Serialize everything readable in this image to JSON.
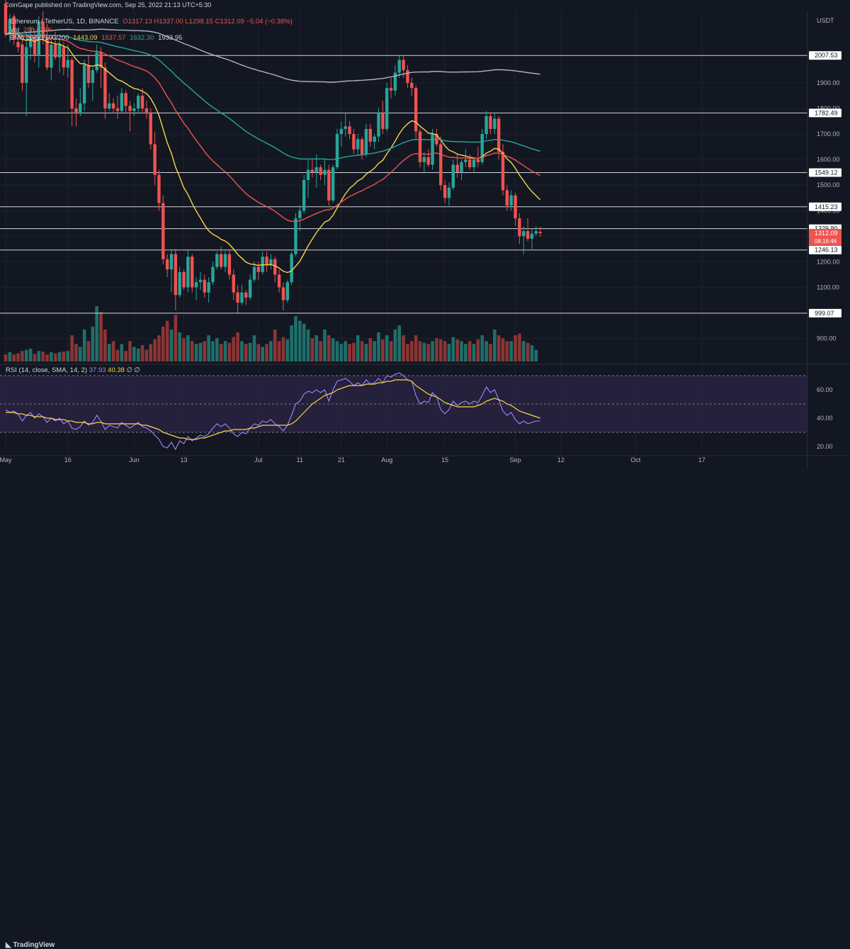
{
  "publisher": "CoinGape published on TradingView.com, Sep 25, 2022 21:13 UTC+5:30",
  "legend": {
    "symbol": "Ethereum / TetherUS, 1D, BINANCE",
    "ohlc": "O1317.13 H1337.00 L1298.15 C1312.09 −5.04 (−0.38%)",
    "vol_label": "Vol",
    "vol_value": "288.618K",
    "ema_label": "EMA 20/50/100/200",
    "ema20": "1443.09",
    "ema50": "1537.57",
    "ema100": "1632.30",
    "ema200": "1933.95"
  },
  "rsi_legend": {
    "label": "RSI (14, close, SMA, 14, 2)",
    "rsi": "37.93",
    "sma": "40.38",
    "tail": "∅ ∅"
  },
  "currency": "USDT",
  "brand": "TradingView",
  "colors": {
    "background": "#131722",
    "up": "#26a69a",
    "down": "#ef5350",
    "ema20": "#f7d54a",
    "ema50": "#ef5350",
    "ema100": "#26a69a",
    "ema200": "#b2b5be",
    "rsi": "#9c88ff",
    "rsi_sma": "#f7d54a"
  },
  "chart_data": {
    "type": "candlestick",
    "title": "Ethereum / TetherUS, 1D, BINANCE",
    "ylabel": "USDT",
    "ylim": [
      810,
      2180
    ],
    "price_ticks": [
      900,
      1000,
      1100,
      1200,
      1300,
      1400,
      1500,
      1600,
      1700,
      1800,
      1900
    ],
    "x_labels": [
      {
        "day": 0,
        "label": "May"
      },
      {
        "day": 15,
        "label": "16"
      },
      {
        "day": 31,
        "label": "Jun"
      },
      {
        "day": 43,
        "label": "13"
      },
      {
        "day": 61,
        "label": "Jul"
      },
      {
        "day": 71,
        "label": "11"
      },
      {
        "day": 81,
        "label": "21"
      },
      {
        "day": 92,
        "label": "Aug"
      },
      {
        "day": 106,
        "label": "15"
      },
      {
        "day": 123,
        "label": "Sep"
      },
      {
        "day": 134,
        "label": "12"
      },
      {
        "day": 152,
        "label": "Oct"
      },
      {
        "day": 168,
        "label": "17"
      }
    ],
    "horizontal_levels": [
      2007.53,
      1782.49,
      1549.12,
      1415.23,
      1329.8,
      1246.13,
      999.07
    ],
    "last_price": {
      "value": 1312.09,
      "label": "1312.09",
      "countdown": "08:16:46"
    },
    "candles": [
      [
        2210,
        2230,
        2080,
        2090
      ],
      [
        2090,
        2170,
        2060,
        2150
      ],
      [
        2160,
        2170,
        2050,
        2070
      ],
      [
        2060,
        2100,
        2020,
        2040
      ],
      [
        2050,
        2070,
        1870,
        1900
      ],
      [
        1900,
        2100,
        1770,
        2040
      ],
      [
        2040,
        2120,
        1990,
        2080
      ],
      [
        2080,
        2110,
        1980,
        2010
      ],
      [
        2010,
        2160,
        1960,
        2140
      ],
      [
        2140,
        2180,
        2050,
        2080
      ],
      [
        2080,
        2130,
        1950,
        1960
      ],
      [
        1960,
        2080,
        1910,
        2050
      ],
      [
        2050,
        2100,
        1990,
        2000
      ],
      [
        2000,
        2070,
        1940,
        2050
      ],
      [
        2040,
        2060,
        1930,
        1960
      ],
      [
        1960,
        2050,
        1920,
        1990
      ],
      [
        1990,
        2000,
        1730,
        1800
      ],
      [
        1800,
        1840,
        1730,
        1780
      ],
      [
        1780,
        1880,
        1770,
        1820
      ],
      [
        1820,
        1990,
        1790,
        1970
      ],
      [
        1970,
        2010,
        1880,
        1900
      ],
      [
        1900,
        1960,
        1830,
        1950
      ],
      [
        1950,
        2050,
        1940,
        2020
      ],
      [
        2020,
        2040,
        1880,
        1960
      ],
      [
        1960,
        1980,
        1760,
        1800
      ],
      [
        1800,
        1860,
        1790,
        1820
      ],
      [
        1820,
        1840,
        1780,
        1800
      ],
      [
        1800,
        1850,
        1760,
        1790
      ],
      [
        1790,
        1880,
        1780,
        1860
      ],
      [
        1860,
        1870,
        1780,
        1810
      ],
      [
        1810,
        1830,
        1710,
        1790
      ],
      [
        1790,
        1820,
        1770,
        1800
      ],
      [
        1800,
        1860,
        1780,
        1850
      ],
      [
        1850,
        1880,
        1780,
        1800
      ],
      [
        1800,
        1830,
        1760,
        1780
      ],
      [
        1780,
        1800,
        1640,
        1660
      ],
      [
        1660,
        1710,
        1500,
        1540
      ],
      [
        1540,
        1560,
        1400,
        1430
      ],
      [
        1430,
        1460,
        1190,
        1210
      ],
      [
        1210,
        1230,
        1140,
        1170
      ],
      [
        1170,
        1250,
        1080,
        1230
      ],
      [
        1230,
        1250,
        1010,
        1070
      ],
      [
        1070,
        1180,
        1060,
        1160
      ],
      [
        1160,
        1170,
        1090,
        1100
      ],
      [
        1100,
        1250,
        1080,
        1220
      ],
      [
        1220,
        1230,
        1080,
        1100
      ],
      [
        1100,
        1140,
        1050,
        1120
      ],
      [
        1120,
        1160,
        1090,
        1130
      ],
      [
        1130,
        1150,
        1060,
        1080
      ],
      [
        1080,
        1140,
        1040,
        1120
      ],
      [
        1120,
        1200,
        1110,
        1180
      ],
      [
        1180,
        1240,
        1170,
        1230
      ],
      [
        1230,
        1260,
        1170,
        1180
      ],
      [
        1180,
        1250,
        1160,
        1230
      ],
      [
        1230,
        1250,
        1130,
        1150
      ],
      [
        1150,
        1170,
        1050,
        1080
      ],
      [
        1080,
        1110,
        1000,
        1040
      ],
      [
        1040,
        1110,
        1030,
        1080
      ],
      [
        1080,
        1090,
        1030,
        1060
      ],
      [
        1060,
        1150,
        1050,
        1130
      ],
      [
        1130,
        1200,
        1120,
        1180
      ],
      [
        1180,
        1200,
        1130,
        1160
      ],
      [
        1160,
        1240,
        1150,
        1220
      ],
      [
        1220,
        1240,
        1160,
        1190
      ],
      [
        1190,
        1230,
        1170,
        1210
      ],
      [
        1210,
        1220,
        1120,
        1150
      ],
      [
        1150,
        1170,
        1080,
        1100
      ],
      [
        1100,
        1120,
        1010,
        1050
      ],
      [
        1050,
        1130,
        1040,
        1120
      ],
      [
        1120,
        1240,
        1110,
        1230
      ],
      [
        1230,
        1390,
        1220,
        1370
      ],
      [
        1370,
        1420,
        1320,
        1400
      ],
      [
        1400,
        1540,
        1390,
        1520
      ],
      [
        1520,
        1600,
        1450,
        1560
      ],
      [
        1560,
        1600,
        1530,
        1550
      ],
      [
        1550,
        1620,
        1490,
        1570
      ],
      [
        1570,
        1580,
        1520,
        1540
      ],
      [
        1540,
        1600,
        1500,
        1560
      ],
      [
        1560,
        1580,
        1420,
        1440
      ],
      [
        1440,
        1580,
        1430,
        1570
      ],
      [
        1570,
        1720,
        1560,
        1700
      ],
      [
        1700,
        1750,
        1650,
        1720
      ],
      [
        1720,
        1780,
        1690,
        1730
      ],
      [
        1730,
        1750,
        1680,
        1700
      ],
      [
        1700,
        1720,
        1620,
        1640
      ],
      [
        1640,
        1700,
        1620,
        1680
      ],
      [
        1680,
        1690,
        1600,
        1620
      ],
      [
        1620,
        1740,
        1610,
        1720
      ],
      [
        1720,
        1740,
        1650,
        1670
      ],
      [
        1670,
        1700,
        1640,
        1690
      ],
      [
        1690,
        1800,
        1670,
        1780
      ],
      [
        1780,
        1830,
        1700,
        1720
      ],
      [
        1720,
        1900,
        1710,
        1880
      ],
      [
        1880,
        1920,
        1840,
        1870
      ],
      [
        1870,
        1970,
        1850,
        1940
      ],
      [
        1940,
        2010,
        1920,
        1990
      ],
      [
        1990,
        2010,
        1920,
        1950
      ],
      [
        1950,
        1970,
        1880,
        1900
      ],
      [
        1900,
        1920,
        1850,
        1880
      ],
      [
        1880,
        1890,
        1680,
        1710
      ],
      [
        1710,
        1720,
        1570,
        1590
      ],
      [
        1590,
        1630,
        1550,
        1610
      ],
      [
        1610,
        1640,
        1570,
        1580
      ],
      [
        1580,
        1720,
        1560,
        1700
      ],
      [
        1700,
        1720,
        1650,
        1660
      ],
      [
        1660,
        1690,
        1480,
        1500
      ],
      [
        1500,
        1520,
        1430,
        1450
      ],
      [
        1450,
        1510,
        1420,
        1490
      ],
      [
        1490,
        1600,
        1480,
        1580
      ],
      [
        1580,
        1620,
        1530,
        1550
      ],
      [
        1550,
        1600,
        1520,
        1590
      ],
      [
        1590,
        1640,
        1570,
        1600
      ],
      [
        1600,
        1620,
        1560,
        1570
      ],
      [
        1570,
        1610,
        1550,
        1600
      ],
      [
        1600,
        1650,
        1570,
        1590
      ],
      [
        1590,
        1720,
        1580,
        1700
      ],
      [
        1700,
        1790,
        1680,
        1770
      ],
      [
        1770,
        1780,
        1700,
        1720
      ],
      [
        1720,
        1780,
        1700,
        1760
      ],
      [
        1760,
        1770,
        1600,
        1630
      ],
      [
        1630,
        1660,
        1460,
        1480
      ],
      [
        1480,
        1500,
        1400,
        1420
      ],
      [
        1420,
        1480,
        1400,
        1460
      ],
      [
        1460,
        1470,
        1340,
        1370
      ],
      [
        1370,
        1390,
        1270,
        1300
      ],
      [
        1300,
        1340,
        1230,
        1320
      ],
      [
        1320,
        1370,
        1280,
        1290
      ],
      [
        1290,
        1330,
        1250,
        1310
      ],
      [
        1310,
        1340,
        1300,
        1320
      ],
      [
        1317,
        1337,
        1298,
        1312
      ]
    ],
    "ema": [
      {
        "name": "EMA 20",
        "value": 1443.09
      },
      {
        "name": "EMA 50",
        "value": 1537.57
      },
      {
        "name": "EMA 100",
        "value": 1632.3
      },
      {
        "name": "EMA 200",
        "value": 1933.95
      }
    ],
    "volume": [
      0.12,
      0.16,
      0.12,
      0.14,
      0.18,
      0.2,
      0.22,
      0.13,
      0.18,
      0.17,
      0.12,
      0.16,
      0.14,
      0.16,
      0.17,
      0.18,
      0.45,
      0.3,
      0.25,
      0.55,
      0.35,
      0.6,
      0.95,
      0.85,
      0.55,
      0.3,
      0.35,
      0.2,
      0.3,
      0.18,
      0.35,
      0.25,
      0.22,
      0.28,
      0.2,
      0.3,
      0.38,
      0.45,
      0.6,
      0.7,
      0.55,
      0.8,
      0.5,
      0.4,
      0.45,
      0.35,
      0.3,
      0.32,
      0.35,
      0.45,
      0.35,
      0.4,
      0.3,
      0.35,
      0.32,
      0.42,
      0.5,
      0.35,
      0.3,
      0.32,
      0.45,
      0.3,
      0.25,
      0.3,
      0.35,
      0.55,
      0.35,
      0.42,
      0.38,
      0.62,
      0.78,
      0.7,
      0.65,
      0.55,
      0.4,
      0.45,
      0.35,
      0.55,
      0.45,
      0.4,
      0.35,
      0.3,
      0.35,
      0.3,
      0.32,
      0.45,
      0.35,
      0.3,
      0.4,
      0.35,
      0.5,
      0.38,
      0.45,
      0.35,
      0.55,
      0.62,
      0.45,
      0.3,
      0.35,
      0.45,
      0.35,
      0.32,
      0.3,
      0.35,
      0.4,
      0.38,
      0.35,
      0.3,
      0.42,
      0.38,
      0.35,
      0.3,
      0.35,
      0.3,
      0.38,
      0.45,
      0.35,
      0.3,
      0.55,
      0.45,
      0.4,
      0.35,
      0.35,
      0.45,
      0.48,
      0.35,
      0.32,
      0.28,
      0.2
    ],
    "rsi": {
      "name": "RSI (14, close, SMA, 14, 2)",
      "ylim": [
        15,
        75
      ],
      "levels": [
        70,
        50,
        30
      ],
      "ticks": [
        20,
        40,
        60
      ],
      "values": [
        46,
        44,
        45,
        43,
        38,
        42,
        44,
        40,
        43,
        41,
        37,
        40,
        38,
        40,
        36,
        38,
        33,
        32,
        34,
        38,
        35,
        37,
        42,
        38,
        32,
        35,
        34,
        33,
        37,
        35,
        33,
        35,
        37,
        34,
        33,
        31,
        28,
        25,
        20,
        19,
        23,
        18,
        24,
        22,
        27,
        24,
        26,
        28,
        27,
        29,
        33,
        36,
        34,
        36,
        33,
        29,
        27,
        30,
        29,
        33,
        36,
        35,
        38,
        37,
        39,
        36,
        34,
        31,
        35,
        42,
        50,
        52,
        57,
        59,
        58,
        60,
        58,
        60,
        52,
        60,
        66,
        67,
        68,
        66,
        63,
        65,
        63,
        67,
        64,
        65,
        68,
        65,
        70,
        69,
        71,
        72,
        70,
        67,
        66,
        56,
        50,
        52,
        51,
        58,
        55,
        46,
        43,
        46,
        52,
        49,
        51,
        52,
        50,
        52,
        51,
        56,
        62,
        58,
        60,
        53,
        45,
        42,
        44,
        39,
        36,
        38,
        36,
        37,
        38,
        38
      ],
      "sma": [
        44,
        44,
        44,
        43,
        43,
        42,
        42,
        41,
        41,
        41,
        40,
        40,
        39,
        39,
        39,
        38,
        38,
        37,
        37,
        37,
        36,
        36,
        37,
        37,
        36,
        36,
        36,
        36,
        36,
        36,
        36,
        36,
        36,
        35,
        35,
        34,
        33,
        32,
        30,
        29,
        28,
        27,
        26,
        26,
        25,
        25,
        25,
        26,
        26,
        27,
        28,
        29,
        30,
        31,
        31,
        32,
        32,
        32,
        32,
        33,
        33,
        34,
        35,
        35,
        35,
        35,
        35,
        35,
        35,
        36,
        38,
        41,
        44,
        47,
        50,
        52,
        54,
        56,
        57,
        58,
        60,
        61,
        62,
        63,
        63,
        63,
        63,
        64,
        64,
        64,
        65,
        65,
        66,
        66,
        67,
        67,
        67,
        67,
        66,
        63,
        61,
        59,
        57,
        56,
        55,
        53,
        51,
        50,
        49,
        48,
        48,
        48,
        48,
        48,
        49,
        50,
        52,
        53,
        54,
        53,
        52,
        50,
        49,
        47,
        45,
        44,
        43,
        42,
        41,
        40
      ]
    }
  }
}
